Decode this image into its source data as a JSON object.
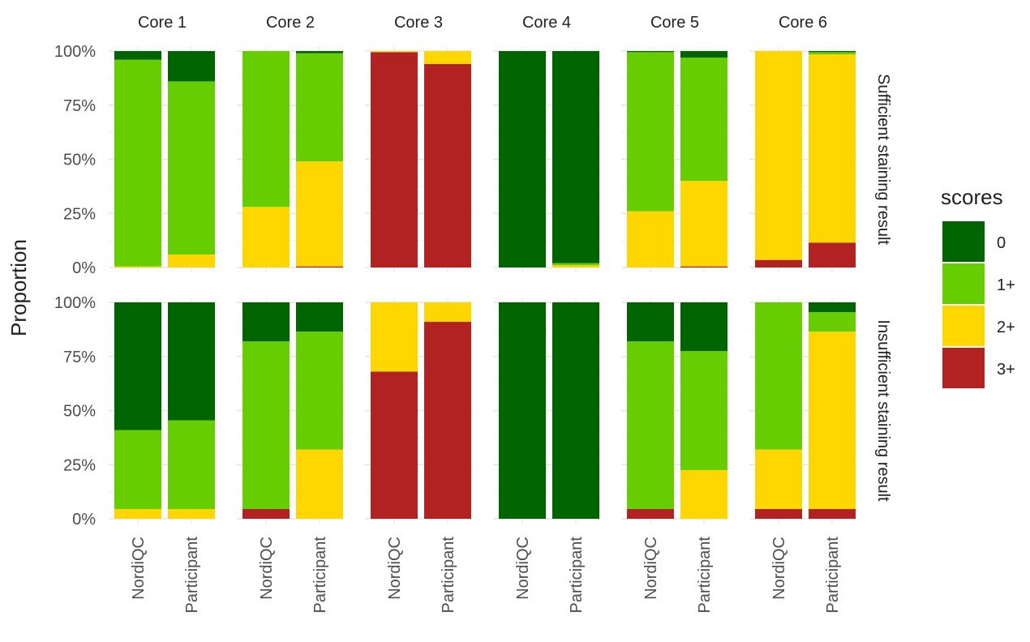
{
  "chart_data": {
    "type": "bar",
    "stacked": true,
    "ylabel": "Proportion",
    "y_ticks": [
      "0%",
      "25%",
      "50%",
      "75%",
      "100%"
    ],
    "ylim": [
      0,
      1
    ],
    "grid": true,
    "legend": {
      "title": "scores",
      "position": "right",
      "entries": [
        {
          "label": "0",
          "color": "#006400"
        },
        {
          "label": "1+",
          "color": "#66CD00"
        },
        {
          "label": "2+",
          "color": "#FFD700"
        },
        {
          "label": "3+",
          "color": "#B22222"
        }
      ]
    },
    "stack_order_bottom_to_top": [
      "3+",
      "2+",
      "1+",
      "0"
    ],
    "columns": [
      "Core 1",
      "Core 2",
      "Core 3",
      "Core 4",
      "Core 5",
      "Core 6"
    ],
    "x_categories": [
      "NordiQC",
      "Participant"
    ],
    "rows": [
      {
        "label": "Sufficient staining result",
        "panels": [
          {
            "bars": [
              {
                "3+": 0,
                "2+": 0.005,
                "1+": 0.955,
                "0": 0.04
              },
              {
                "3+": 0,
                "2+": 0.06,
                "1+": 0.8,
                "0": 0.14
              }
            ]
          },
          {
            "bars": [
              {
                "3+": 0,
                "2+": 0.28,
                "1+": 0.72,
                "0": 0
              },
              {
                "3+": 0.005,
                "2+": 0.485,
                "1+": 0.5,
                "0": 0.01
              }
            ]
          },
          {
            "bars": [
              {
                "3+": 0.995,
                "2+": 0.005,
                "1+": 0,
                "0": 0
              },
              {
                "3+": 0.94,
                "2+": 0.06,
                "1+": 0,
                "0": 0
              }
            ]
          },
          {
            "bars": [
              {
                "3+": 0,
                "2+": 0,
                "1+": 0,
                "0": 1.0
              },
              {
                "3+": 0,
                "2+": 0.01,
                "1+": 0.01,
                "0": 0.98
              }
            ]
          },
          {
            "bars": [
              {
                "3+": 0,
                "2+": 0.26,
                "1+": 0.735,
                "0": 0.005
              },
              {
                "3+": 0.005,
                "2+": 0.395,
                "1+": 0.57,
                "0": 0.03
              }
            ]
          },
          {
            "bars": [
              {
                "3+": 0.035,
                "2+": 0.965,
                "1+": 0,
                "0": 0
              },
              {
                "3+": 0.115,
                "2+": 0.87,
                "1+": 0.01,
                "0": 0.005
              }
            ]
          }
        ]
      },
      {
        "label": "Insufficient staining result",
        "panels": [
          {
            "bars": [
              {
                "3+": 0,
                "2+": 0.045,
                "1+": 0.365,
                "0": 0.59
              },
              {
                "3+": 0,
                "2+": 0.045,
                "1+": 0.41,
                "0": 0.545
              }
            ]
          },
          {
            "bars": [
              {
                "3+": 0.045,
                "2+": 0,
                "1+": 0.775,
                "0": 0.18
              },
              {
                "3+": 0,
                "2+": 0.32,
                "1+": 0.545,
                "0": 0.135
              }
            ]
          },
          {
            "bars": [
              {
                "3+": 0.68,
                "2+": 0.32,
                "1+": 0,
                "0": 0
              },
              {
                "3+": 0.91,
                "2+": 0.09,
                "1+": 0,
                "0": 0
              }
            ]
          },
          {
            "bars": [
              {
                "3+": 0,
                "2+": 0,
                "1+": 0,
                "0": 1.0
              },
              {
                "3+": 0,
                "2+": 0,
                "1+": 0,
                "0": 1.0
              }
            ]
          },
          {
            "bars": [
              {
                "3+": 0.045,
                "2+": 0,
                "1+": 0.775,
                "0": 0.18
              },
              {
                "3+": 0,
                "2+": 0.225,
                "1+": 0.55,
                "0": 0.225
              }
            ]
          },
          {
            "bars": [
              {
                "3+": 0.045,
                "2+": 0.275,
                "1+": 0.68,
                "0": 0
              },
              {
                "3+": 0.045,
                "2+": 0.82,
                "1+": 0.09,
                "0": 0.045
              }
            ]
          }
        ]
      }
    ]
  }
}
